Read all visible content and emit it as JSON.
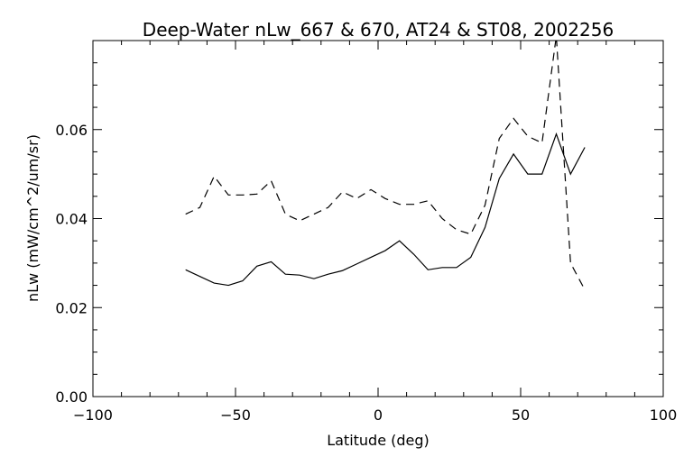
{
  "chart_data": {
    "type": "line",
    "title": "Deep-Water nLw_667 & 670, AT24 & ST08, 2002256",
    "xlabel": "Latitude (deg)",
    "ylabel": "nLw (mW/cm^2/um/sr)",
    "xlim": [
      -100,
      100
    ],
    "ylim": [
      0,
      0.08
    ],
    "xticks": [
      -100,
      -50,
      0,
      50,
      100
    ],
    "xtick_labels": [
      "−100",
      "−50",
      "0",
      "50",
      "100"
    ],
    "yticks": [
      0,
      0.02,
      0.04,
      0.06
    ],
    "ytick_labels": [
      "0.00",
      "0.02",
      "0.04",
      "0.06"
    ],
    "grid": false,
    "x": [
      -67.5,
      -62.5,
      -57.5,
      -52.5,
      -47.5,
      -42.5,
      -37.5,
      -32.5,
      -27.5,
      -22.5,
      -17.5,
      -12.5,
      -7.5,
      -2.5,
      2.5,
      7.5,
      12.5,
      17.5,
      22.5,
      27.5,
      32.5,
      37.5,
      42.5,
      47.5,
      52.5,
      57.5,
      62.5,
      67.5,
      72.5
    ],
    "series": [
      {
        "name": "solid",
        "style": "solid",
        "values": [
          0.0285,
          0.027,
          0.0255,
          0.025,
          0.026,
          0.0293,
          0.0303,
          0.0275,
          0.0273,
          0.0265,
          0.0275,
          0.0283,
          0.0298,
          0.0313,
          0.0328,
          0.035,
          0.032,
          0.0285,
          0.029,
          0.029,
          0.0313,
          0.038,
          0.049,
          0.0545,
          0.05,
          0.05,
          0.059,
          0.05,
          0.056
        ]
      },
      {
        "name": "dashed",
        "style": "dashed",
        "values": [
          0.041,
          0.0425,
          0.0495,
          0.0453,
          0.0453,
          0.0455,
          0.0485,
          0.041,
          0.0395,
          0.041,
          0.0425,
          0.046,
          0.0445,
          0.0465,
          0.0445,
          0.0432,
          0.0432,
          0.044,
          0.04,
          0.0375,
          0.0365,
          0.043,
          0.058,
          0.0625,
          0.0585,
          0.057,
          0.081,
          0.03,
          0.024
        ]
      }
    ]
  }
}
